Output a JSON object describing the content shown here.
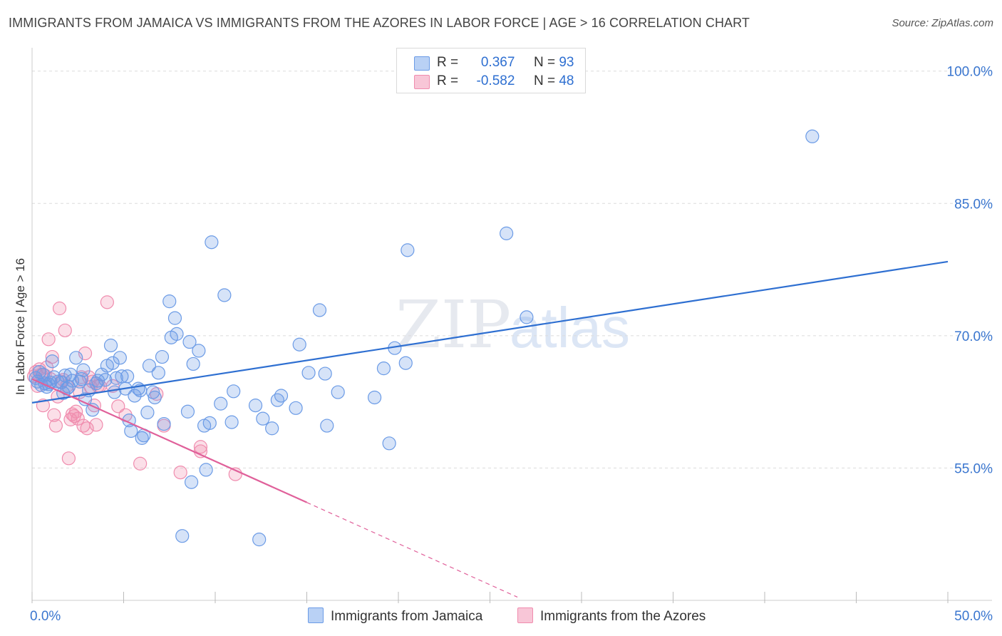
{
  "title": "IMMIGRANTS FROM JAMAICA VS IMMIGRANTS FROM THE AZORES IN LABOR FORCE | AGE > 16 CORRELATION CHART",
  "source": "Source: ZipAtlas.com",
  "watermark": {
    "zip": "ZIP",
    "atlas": "atlas"
  },
  "legend": {
    "r_label": "R =",
    "n_label": "N =",
    "jamaica": {
      "r": "0.367",
      "n": "93"
    },
    "azores": {
      "r": "-0.582",
      "n": "48"
    }
  },
  "chart_data": {
    "type": "scatter",
    "title": "IMMIGRANTS FROM JAMAICA VS IMMIGRANTS FROM THE AZORES IN LABOR FORCE | AGE > 16 CORRELATION CHART",
    "xlabel": "",
    "ylabel": "In Labor Force | Age > 16",
    "xlim": [
      0,
      50
    ],
    "ylim": [
      40,
      102
    ],
    "x_tick_labels": {
      "left": "0.0%",
      "right": "50.0%"
    },
    "y_ticks": [
      {
        "value": 55,
        "label": "55.0%"
      },
      {
        "value": 70,
        "label": "70.0%"
      },
      {
        "value": 85,
        "label": "85.0%"
      },
      {
        "value": 100,
        "label": "100.0%"
      }
    ],
    "colors": {
      "jamaica": "#6b9be6",
      "azores": "#f08cae",
      "jamaica_line": "#2e6fd1",
      "azores_line": "#e0609a",
      "axis_text": "#3a76cf"
    },
    "series": [
      {
        "name": "Immigrants from Jamaica",
        "trend": {
          "x0": 0,
          "y0": 62.4,
          "x1": 50,
          "y1": 78.4
        },
        "points": [
          [
            0.2,
            65.2
          ],
          [
            0.3,
            64.8
          ],
          [
            0.5,
            64.4
          ],
          [
            0.6,
            65.6
          ],
          [
            0.7,
            64.6
          ],
          [
            0.8,
            64.2
          ],
          [
            1.0,
            64.7
          ],
          [
            1.1,
            67.1
          ],
          [
            1.2,
            65.3
          ],
          [
            1.4,
            64.8
          ],
          [
            1.6,
            64.7
          ],
          [
            1.7,
            63.5
          ],
          [
            1.8,
            65.5
          ],
          [
            1.9,
            64.0
          ],
          [
            2.0,
            64.2
          ],
          [
            2.1,
            65.6
          ],
          [
            2.4,
            67.5
          ],
          [
            2.6,
            64.8
          ],
          [
            2.7,
            65.1
          ],
          [
            2.8,
            66.1
          ],
          [
            2.9,
            62.8
          ],
          [
            3.1,
            63.8
          ],
          [
            3.3,
            61.6
          ],
          [
            3.5,
            64.6
          ],
          [
            3.8,
            65.6
          ],
          [
            4.0,
            65.0
          ],
          [
            4.1,
            66.6
          ],
          [
            4.3,
            68.9
          ],
          [
            4.4,
            66.9
          ],
          [
            4.5,
            63.6
          ],
          [
            4.6,
            65.2
          ],
          [
            4.8,
            67.5
          ],
          [
            4.9,
            65.4
          ],
          [
            5.1,
            64.0
          ],
          [
            5.2,
            65.4
          ],
          [
            5.3,
            60.4
          ],
          [
            5.4,
            59.2
          ],
          [
            5.6,
            63.2
          ],
          [
            5.8,
            64.0
          ],
          [
            5.9,
            63.8
          ],
          [
            6.0,
            58.4
          ],
          [
            6.1,
            58.7
          ],
          [
            6.3,
            61.3
          ],
          [
            6.4,
            66.6
          ],
          [
            6.6,
            63.6
          ],
          [
            6.7,
            63.0
          ],
          [
            6.9,
            65.8
          ],
          [
            7.1,
            67.6
          ],
          [
            7.2,
            60.0
          ],
          [
            7.5,
            73.9
          ],
          [
            7.6,
            69.8
          ],
          [
            7.8,
            72.0
          ],
          [
            7.9,
            70.2
          ],
          [
            8.2,
            47.3
          ],
          [
            8.5,
            61.4
          ],
          [
            8.6,
            69.3
          ],
          [
            8.7,
            53.4
          ],
          [
            8.8,
            66.8
          ],
          [
            9.1,
            68.3
          ],
          [
            9.4,
            59.8
          ],
          [
            9.5,
            54.8
          ],
          [
            9.7,
            60.1
          ],
          [
            9.8,
            80.6
          ],
          [
            10.3,
            62.3
          ],
          [
            10.5,
            74.6
          ],
          [
            10.9,
            60.2
          ],
          [
            11.0,
            63.7
          ],
          [
            12.2,
            62.1
          ],
          [
            12.4,
            46.9
          ],
          [
            12.6,
            60.6
          ],
          [
            13.1,
            59.5
          ],
          [
            13.4,
            62.7
          ],
          [
            13.6,
            63.2
          ],
          [
            14.4,
            61.8
          ],
          [
            14.6,
            69.0
          ],
          [
            15.1,
            65.8
          ],
          [
            15.7,
            72.9
          ],
          [
            16.0,
            65.7
          ],
          [
            16.1,
            59.8
          ],
          [
            16.7,
            63.6
          ],
          [
            18.7,
            63.0
          ],
          [
            19.2,
            66.3
          ],
          [
            19.5,
            57.8
          ],
          [
            19.8,
            68.6
          ],
          [
            20.4,
            66.9
          ],
          [
            20.5,
            79.7
          ],
          [
            25.9,
            81.6
          ],
          [
            27.0,
            72.1
          ],
          [
            42.6,
            92.6
          ],
          [
            0.4,
            65.9
          ],
          [
            0.9,
            64.5
          ],
          [
            2.2,
            64.9
          ],
          [
            3.6,
            64.9
          ]
        ]
      },
      {
        "name": "Immigrants from the Azores",
        "trend": {
          "x0": 0,
          "y0": 65.1,
          "x1": 15,
          "y1": 51.1,
          "dash_to_x": 26.5
        },
        "points": [
          [
            0.1,
            65.4
          ],
          [
            0.2,
            65.9
          ],
          [
            0.3,
            64.3
          ],
          [
            0.4,
            66.2
          ],
          [
            0.5,
            65.6
          ],
          [
            0.6,
            62.1
          ],
          [
            0.7,
            65.5
          ],
          [
            0.8,
            66.4
          ],
          [
            0.9,
            69.6
          ],
          [
            1.0,
            65.1
          ],
          [
            1.1,
            67.6
          ],
          [
            1.2,
            61.0
          ],
          [
            1.3,
            59.8
          ],
          [
            1.4,
            63.1
          ],
          [
            1.5,
            73.1
          ],
          [
            1.6,
            64.8
          ],
          [
            1.7,
            65.0
          ],
          [
            1.8,
            70.6
          ],
          [
            1.9,
            64.3
          ],
          [
            2.0,
            56.1
          ],
          [
            2.1,
            60.5
          ],
          [
            2.2,
            61.1
          ],
          [
            2.3,
            60.9
          ],
          [
            2.4,
            61.4
          ],
          [
            2.5,
            60.6
          ],
          [
            2.6,
            63.6
          ],
          [
            2.7,
            65.3
          ],
          [
            2.8,
            59.8
          ],
          [
            2.9,
            68.0
          ],
          [
            3.0,
            59.5
          ],
          [
            3.1,
            65.3
          ],
          [
            3.2,
            64.2
          ],
          [
            3.3,
            64.8
          ],
          [
            3.4,
            62.1
          ],
          [
            3.5,
            59.9
          ],
          [
            3.6,
            64.3
          ],
          [
            3.7,
            64.3
          ],
          [
            4.1,
            73.8
          ],
          [
            4.4,
            64.3
          ],
          [
            4.7,
            62.0
          ],
          [
            5.1,
            61.0
          ],
          [
            5.9,
            55.5
          ],
          [
            6.8,
            63.4
          ],
          [
            7.2,
            59.8
          ],
          [
            8.1,
            54.5
          ],
          [
            9.2,
            57.4
          ],
          [
            9.2,
            56.9
          ],
          [
            11.1,
            54.3
          ]
        ]
      }
    ],
    "legend_position": "top-center"
  },
  "bottom_legend": {
    "jamaica": "Immigrants from Jamaica",
    "azores": "Immigrants from the Azores"
  }
}
